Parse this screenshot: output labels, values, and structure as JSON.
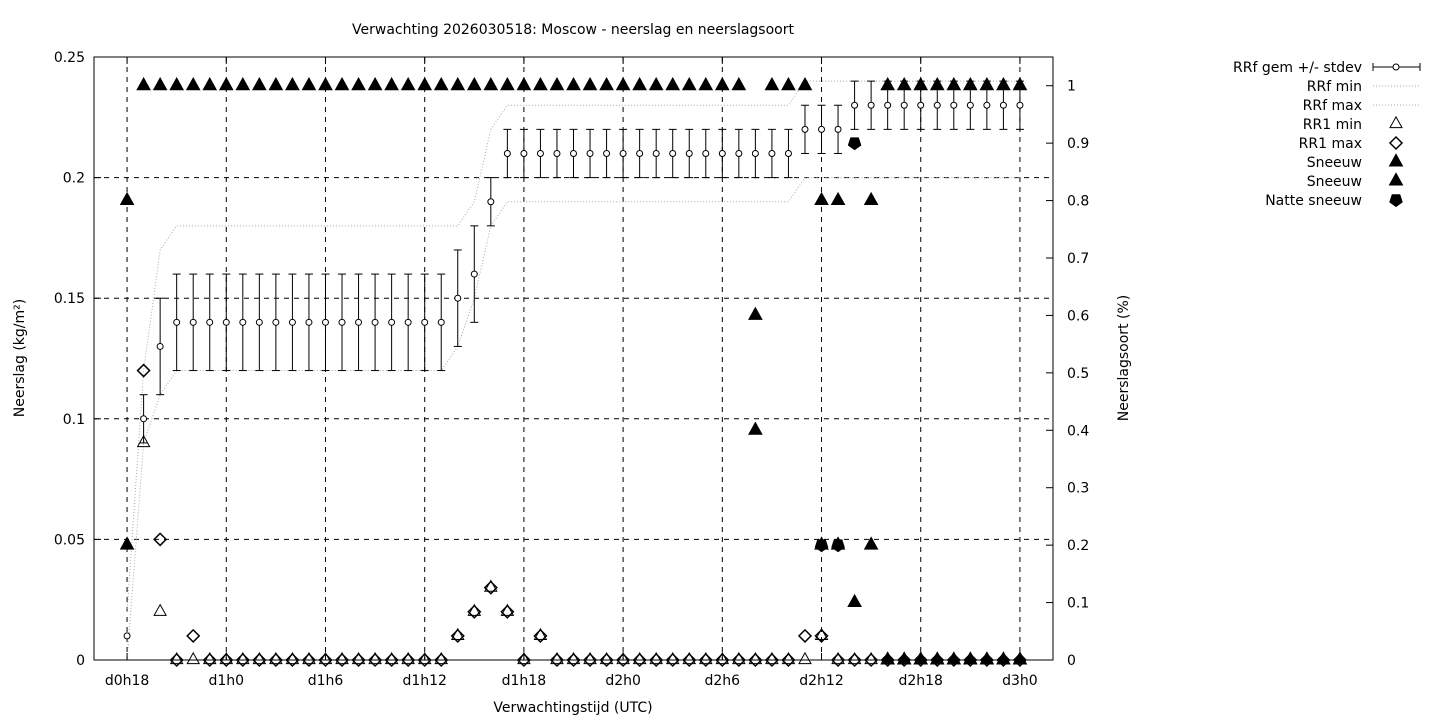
{
  "chart_data": {
    "type": "scatter",
    "title": "Verwachting 2026030518: Moscow - neerslag en neerslagsoort",
    "xlabel": "Verwachtingstijd (UTC)",
    "ylabel": "Neerslag (kg/m²)",
    "ylabel_right": "Neerslagsoort (%)",
    "x_unit": "hours from d0h18 (d0h18 = 0, d3h0 = 54)",
    "xlim": [
      -2,
      56
    ],
    "ylim": [
      0,
      0.25
    ],
    "ylim_right": [
      0,
      1.05
    ],
    "x_ticks": [
      {
        "x": 0,
        "label": "d0h18"
      },
      {
        "x": 6,
        "label": "d1h0"
      },
      {
        "x": 12,
        "label": "d1h6"
      },
      {
        "x": 18,
        "label": "d1h12"
      },
      {
        "x": 24,
        "label": "d1h18"
      },
      {
        "x": 30,
        "label": "d2h0"
      },
      {
        "x": 36,
        "label": "d2h6"
      },
      {
        "x": 42,
        "label": "d2h12"
      },
      {
        "x": 48,
        "label": "d2h18"
      },
      {
        "x": 54,
        "label": "d3h0"
      }
    ],
    "y_ticks": [
      {
        "v": 0,
        "label": "0"
      },
      {
        "v": 0.05,
        "label": "0.05"
      },
      {
        "v": 0.1,
        "label": "0.1"
      },
      {
        "v": 0.15,
        "label": "0.15"
      },
      {
        "v": 0.2,
        "label": "0.2"
      },
      {
        "v": 0.25,
        "label": "0.25"
      }
    ],
    "y_ticks_right": [
      {
        "v": 0,
        "label": "0"
      },
      {
        "v": 0.1,
        "label": "0.1"
      },
      {
        "v": 0.2,
        "label": "0.2"
      },
      {
        "v": 0.3,
        "label": "0.3"
      },
      {
        "v": 0.4,
        "label": "0.4"
      },
      {
        "v": 0.5,
        "label": "0.5"
      },
      {
        "v": 0.6,
        "label": "0.6"
      },
      {
        "v": 0.7,
        "label": "0.7"
      },
      {
        "v": 0.8,
        "label": "0.8"
      },
      {
        "v": 0.9,
        "label": "0.9"
      },
      {
        "v": 1,
        "label": "1"
      }
    ],
    "grid": true,
    "legend_position": "top-right outside",
    "legend": [
      {
        "label": "RRf gem +/- stdev",
        "symbol": "errorbar"
      },
      {
        "label": "RRf min",
        "symbol": "dotted"
      },
      {
        "label": "RRf max",
        "symbol": "dotted"
      },
      {
        "label": "RR1 min",
        "symbol": "triangle-open"
      },
      {
        "label": "RR1 max",
        "symbol": "diamond-open"
      },
      {
        "label": "Sneeuw",
        "symbol": "triangle-filled"
      },
      {
        "label": "Sneeuw",
        "symbol": "triangle-filled"
      },
      {
        "label": "Natte sneeuw",
        "symbol": "pentagon-filled"
      }
    ],
    "rrf": {
      "x": [
        0,
        1,
        2,
        3,
        4,
        5,
        6,
        7,
        8,
        9,
        10,
        11,
        12,
        13,
        14,
        15,
        16,
        17,
        18,
        19,
        20,
        21,
        22,
        23,
        24,
        25,
        26,
        27,
        28,
        29,
        30,
        31,
        32,
        33,
        34,
        35,
        36,
        37,
        38,
        39,
        40,
        41,
        42,
        43,
        44,
        45,
        46,
        47,
        48,
        49,
        50,
        51,
        52,
        53,
        54
      ],
      "mean": [
        0.01,
        0.1,
        0.13,
        0.14,
        0.14,
        0.14,
        0.14,
        0.14,
        0.14,
        0.14,
        0.14,
        0.14,
        0.14,
        0.14,
        0.14,
        0.14,
        0.14,
        0.14,
        0.14,
        0.14,
        0.15,
        0.16,
        0.19,
        0.21,
        0.21,
        0.21,
        0.21,
        0.21,
        0.21,
        0.21,
        0.21,
        0.21,
        0.21,
        0.21,
        0.21,
        0.21,
        0.21,
        0.21,
        0.21,
        0.21,
        0.21,
        0.22,
        0.22,
        0.22,
        0.23,
        0.23,
        0.23,
        0.23,
        0.23,
        0.23,
        0.23,
        0.23,
        0.23,
        0.23,
        0.23
      ],
      "stdev": [
        0,
        0.01,
        0.02,
        0.02,
        0.02,
        0.02,
        0.02,
        0.02,
        0.02,
        0.02,
        0.02,
        0.02,
        0.02,
        0.02,
        0.02,
        0.02,
        0.02,
        0.02,
        0.02,
        0.02,
        0.02,
        0.02,
        0.01,
        0.01,
        0.01,
        0.01,
        0.01,
        0.01,
        0.01,
        0.01,
        0.01,
        0.01,
        0.01,
        0.01,
        0.01,
        0.01,
        0.01,
        0.01,
        0.01,
        0.01,
        0.01,
        0.01,
        0.01,
        0.01,
        0.01,
        0.01,
        0.01,
        0.01,
        0.01,
        0.01,
        0.01,
        0.01,
        0.01,
        0.01,
        0.01
      ],
      "min": [
        0,
        0.09,
        0.11,
        0.12,
        0.12,
        0.12,
        0.12,
        0.12,
        0.12,
        0.12,
        0.12,
        0.12,
        0.12,
        0.12,
        0.12,
        0.12,
        0.12,
        0.12,
        0.12,
        0.12,
        0.13,
        0.15,
        0.18,
        0.19,
        0.19,
        0.19,
        0.19,
        0.19,
        0.19,
        0.19,
        0.19,
        0.19,
        0.19,
        0.19,
        0.19,
        0.19,
        0.19,
        0.19,
        0.19,
        0.19,
        0.19,
        0.2,
        0.2,
        0.2,
        0.2,
        0.2,
        0.2,
        0.2,
        0.2,
        0.2,
        0.2,
        0.2,
        0.2,
        0.2,
        0.2
      ],
      "max": [
        0.02,
        0.12,
        0.17,
        0.18,
        0.18,
        0.18,
        0.18,
        0.18,
        0.18,
        0.18,
        0.18,
        0.18,
        0.18,
        0.18,
        0.18,
        0.18,
        0.18,
        0.18,
        0.18,
        0.18,
        0.18,
        0.19,
        0.22,
        0.23,
        0.23,
        0.23,
        0.23,
        0.23,
        0.23,
        0.23,
        0.23,
        0.23,
        0.23,
        0.23,
        0.23,
        0.23,
        0.23,
        0.23,
        0.23,
        0.23,
        0.23,
        0.24,
        0.24,
        0.24,
        0.24,
        0.24,
        0.24,
        0.24,
        0.24,
        0.24,
        0.24,
        0.24,
        0.24,
        0.24,
        0.24
      ]
    },
    "rr1_min": {
      "x": [
        1,
        2,
        3,
        4,
        5,
        6,
        7,
        8,
        9,
        10,
        11,
        12,
        13,
        14,
        15,
        16,
        17,
        18,
        19,
        20,
        21,
        22,
        23,
        24,
        25,
        26,
        27,
        28,
        29,
        30,
        31,
        32,
        33,
        34,
        35,
        36,
        37,
        38,
        39,
        40,
        41,
        42,
        43,
        44,
        45,
        46,
        47,
        48,
        49,
        50,
        51,
        52,
        53,
        54
      ],
      "y": [
        0.09,
        0.02,
        0,
        0,
        0,
        0,
        0,
        0,
        0,
        0,
        0,
        0,
        0,
        0,
        0,
        0,
        0,
        0,
        0,
        0.01,
        0.02,
        0.03,
        0.02,
        0,
        0.01,
        0,
        0,
        0,
        0,
        0,
        0,
        0,
        0,
        0,
        0,
        0,
        0,
        0,
        0,
        0,
        0,
        0.01,
        0,
        0,
        0,
        0,
        0,
        0,
        0,
        0,
        0,
        0,
        0,
        0
      ]
    },
    "rr1_max": {
      "x": [
        1,
        2,
        3,
        4,
        5,
        6,
        7,
        8,
        9,
        10,
        11,
        12,
        13,
        14,
        15,
        16,
        17,
        18,
        19,
        20,
        21,
        22,
        23,
        24,
        25,
        26,
        27,
        28,
        29,
        30,
        31,
        32,
        33,
        34,
        35,
        36,
        37,
        38,
        39,
        40,
        41,
        42,
        43,
        44,
        45,
        46,
        47,
        48,
        49,
        50,
        51,
        52,
        53,
        54
      ],
      "y": [
        0.12,
        0.05,
        0,
        0.01,
        0,
        0,
        0,
        0,
        0,
        0,
        0,
        0,
        0,
        0,
        0,
        0,
        0,
        0,
        0,
        0.01,
        0.02,
        0.03,
        0.02,
        0,
        0.01,
        0,
        0,
        0,
        0,
        0,
        0,
        0,
        0,
        0,
        0,
        0,
        0,
        0,
        0,
        0,
        0.01,
        0.01,
        0,
        0,
        0,
        0,
        0,
        0,
        0,
        0,
        0,
        0,
        0,
        0
      ]
    },
    "sneeuw_1": {
      "x": [
        0,
        1,
        2,
        3,
        4,
        5,
        6,
        7,
        8,
        9,
        10,
        11,
        12,
        13,
        14,
        15,
        16,
        17,
        18,
        19,
        20,
        21,
        22,
        23,
        24,
        25,
        26,
        27,
        28,
        29,
        30,
        31,
        32,
        33,
        34,
        35,
        36,
        37,
        39,
        40,
        41,
        46,
        47,
        48,
        49,
        50,
        51,
        52,
        53,
        54
      ],
      "y": [
        0.8,
        1,
        1,
        1,
        1,
        1,
        1,
        1,
        1,
        1,
        1,
        1,
        1,
        1,
        1,
        1,
        1,
        1,
        1,
        1,
        1,
        1,
        1,
        1,
        1,
        1,
        1,
        1,
        1,
        1,
        1,
        1,
        1,
        1,
        1,
        1,
        1,
        1,
        1,
        1,
        1,
        1,
        1,
        1,
        1,
        1,
        1,
        1,
        1,
        1
      ]
    },
    "sneeuw_2": {
      "x": [
        0,
        38,
        38,
        42,
        42,
        43,
        43,
        44,
        45,
        45,
        46,
        47,
        48,
        49,
        50,
        51,
        52,
        53,
        54
      ],
      "y": [
        0.2,
        0.6,
        0.4,
        0.8,
        0.2,
        0.8,
        0.2,
        0.1,
        0.8,
        0.2,
        0,
        0,
        0,
        0,
        0,
        0,
        0,
        0,
        0
      ]
    },
    "natte_sneeuw": {
      "x": [
        42,
        43,
        44
      ],
      "y": [
        0.2,
        0.2,
        0.9
      ]
    }
  }
}
